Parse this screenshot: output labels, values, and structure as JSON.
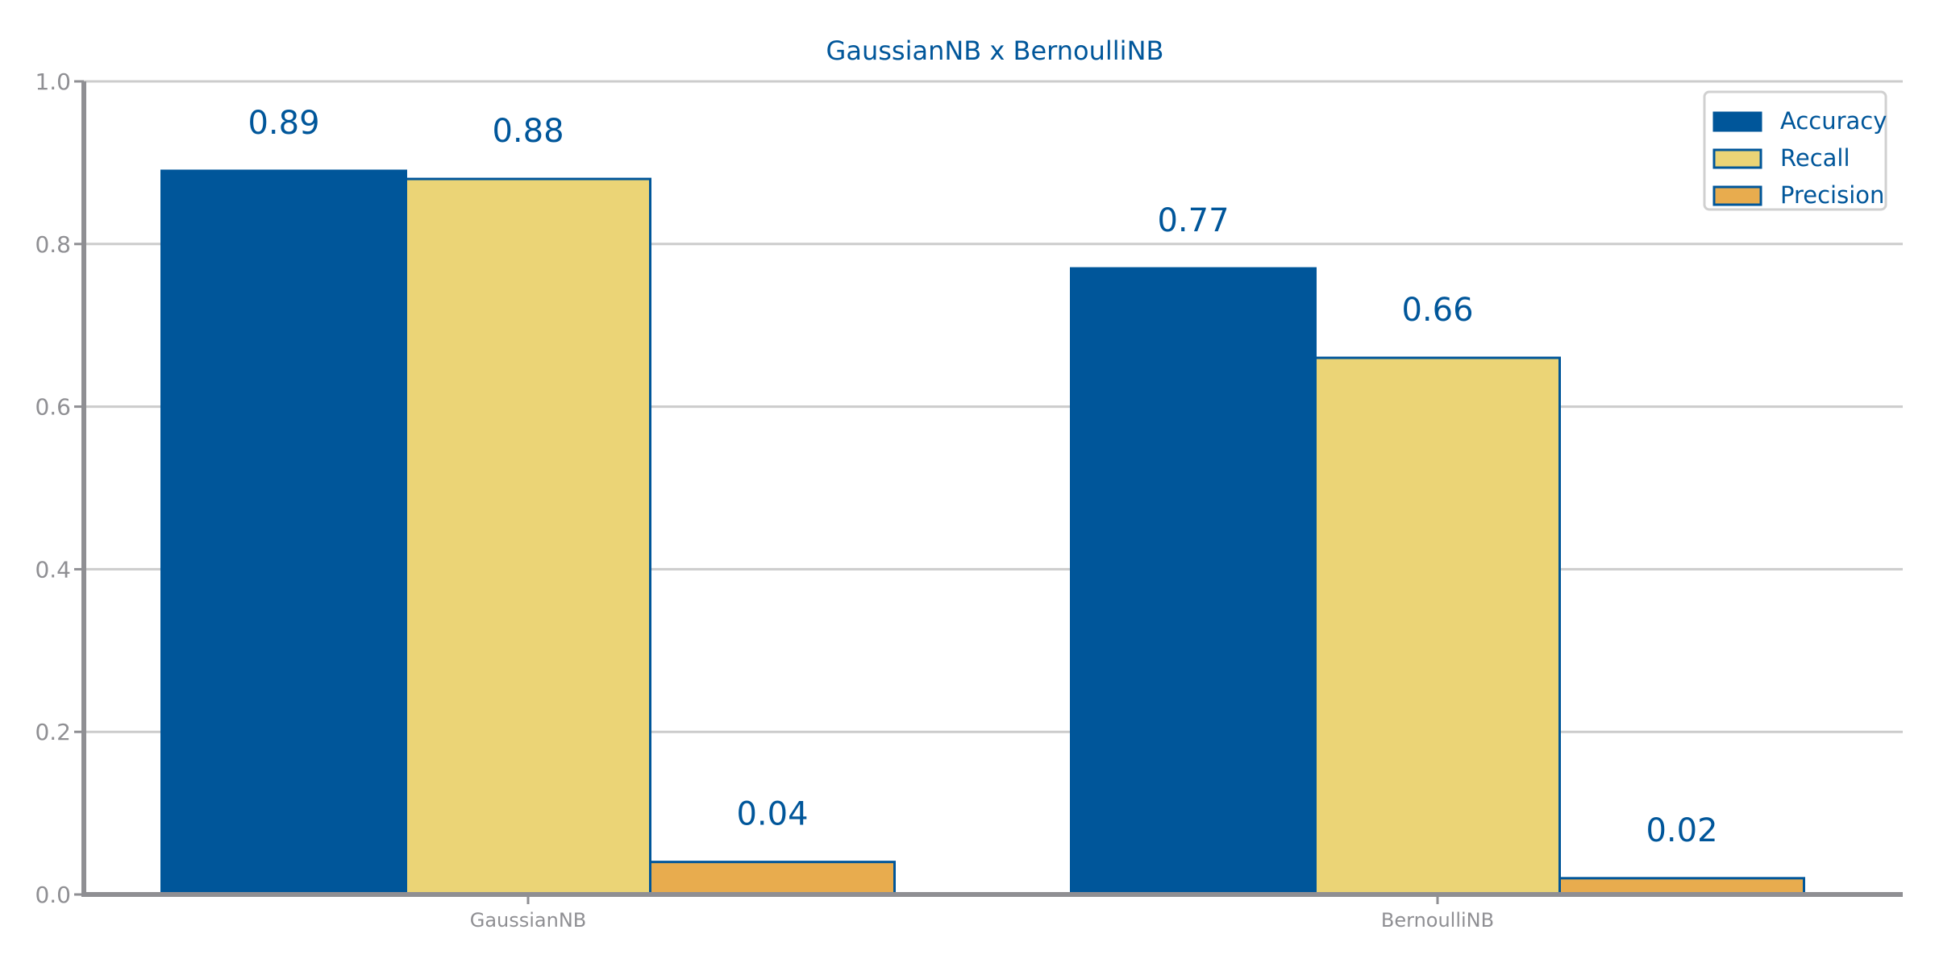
{
  "chart_data": {
    "type": "bar",
    "title": "GaussianNB x BernoulliNB",
    "xlabel": "",
    "ylabel": "",
    "categories": [
      "GaussianNB",
      "BernoulliNB"
    ],
    "series": [
      {
        "name": "Accuracy",
        "values": [
          0.89,
          0.77
        ],
        "labels": [
          "0.89",
          "0.77"
        ],
        "color": "#00569a",
        "edge": "#00569a"
      },
      {
        "name": "Recall",
        "values": [
          0.88,
          0.66
        ],
        "labels": [
          "0.88",
          "0.66"
        ],
        "color": "#ebd476",
        "edge": "#00569a"
      },
      {
        "name": "Precision",
        "values": [
          0.04,
          0.02
        ],
        "labels": [
          "0.04",
          "0.02"
        ],
        "color": "#e8ac4e",
        "edge": "#00569a"
      }
    ],
    "ylim": [
      0,
      1.0
    ],
    "yticks": [
      "0.0",
      "0.2",
      "0.4",
      "0.6",
      "0.8",
      "1.0"
    ],
    "grid": true,
    "legend_position": "top-right",
    "colors": {
      "text": "#00569a",
      "axis": "#8f8f93",
      "grid": "#cccccc"
    }
  }
}
